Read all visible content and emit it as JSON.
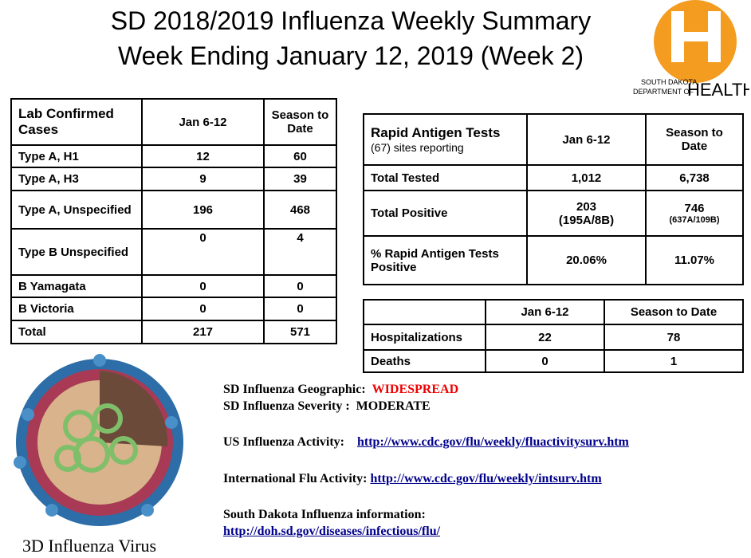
{
  "header": {
    "title_line1": "SD 2018/2019 Influenza Weekly Summary",
    "title_line2": "Week Ending January 12, 2019 (Week 2)"
  },
  "logo": {
    "line1": "SOUTH DAKOTA",
    "line2": "DEPARTMENT OF",
    "word": "HEALTH"
  },
  "lab_table": {
    "header": [
      "Lab Confirmed Cases",
      "Jan 6-12",
      "Season to Date"
    ],
    "rows": [
      [
        "Type A, H1",
        "12",
        "60"
      ],
      [
        "Type A, H3",
        "9",
        "39"
      ],
      [
        "Type A, Unspecified",
        "196",
        "468"
      ],
      [
        "Type B Unspecified",
        "0",
        "4"
      ],
      [
        "B Yamagata",
        "0",
        "0"
      ],
      [
        "B Victoria",
        "0",
        "0"
      ],
      [
        "Total",
        "217",
        "571"
      ]
    ]
  },
  "rapid_table": {
    "title": "Rapid Antigen Tests",
    "subtitle": "(67) sites reporting",
    "header": [
      "Jan 6-12",
      "Season to Date"
    ],
    "rows": [
      [
        "Total Tested",
        "1,012",
        "6,738"
      ],
      [
        "Total Positive",
        "203",
        "746"
      ],
      [
        "% Rapid Antigen Tests Positive",
        "20.06%",
        "11.07%"
      ]
    ],
    "positive_details": [
      "(195A/8B)",
      "(637A/109B)"
    ]
  },
  "hosp_table": {
    "header": [
      "Jan 6-12",
      "Season to Date"
    ],
    "rows": [
      [
        "Hospitalizations",
        "22",
        "78"
      ],
      [
        "Deaths",
        "0",
        "1"
      ]
    ]
  },
  "info": {
    "geographic_label": "SD Influenza Geographic:",
    "geographic_value": "WIDESPREAD",
    "severity_label": "SD Influenza Severity :",
    "severity_value": "MODERATE",
    "us_label": "US Influenza Activity:",
    "us_link": "http://www.cdc.gov/flu/weekly/fluactivitysurv.htm",
    "intl_label": "International Flu Activity:",
    "intl_link": "http://www.cdc.gov/flu/weekly/intsurv.htm",
    "sd_label": "South Dakota Influenza information:",
    "sd_link": "http://doh.sd.gov/diseases/infectious/flu/"
  },
  "image_caption": "3D Influenza Virus"
}
